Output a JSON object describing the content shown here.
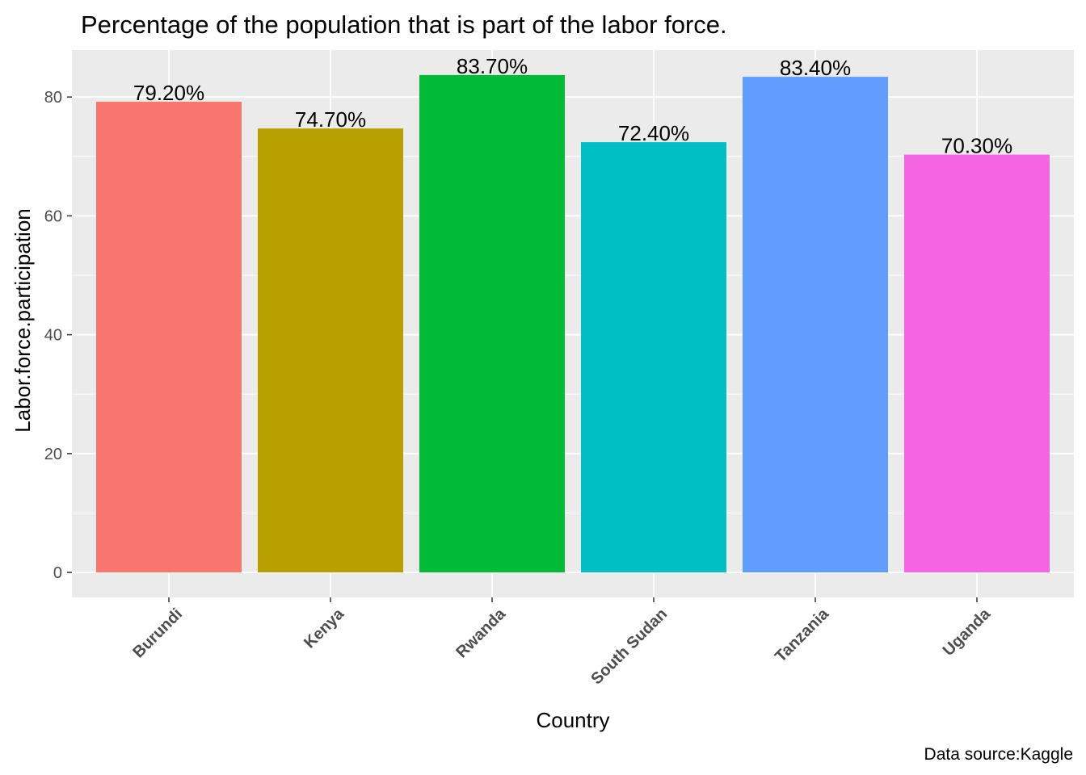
{
  "chart_data": {
    "type": "bar",
    "title": "Percentage of the population that is part of the labor force.",
    "xlabel": "Country",
    "ylabel": "Labor.force.participation",
    "caption": "Data source:Kaggle",
    "categories": [
      "Burundi",
      "Kenya",
      "Rwanda",
      "South Sudan",
      "Tanzania",
      "Uganda"
    ],
    "values": [
      79.2,
      74.7,
      83.7,
      72.4,
      83.4,
      70.3
    ],
    "data_labels": [
      "79.20%",
      "74.70%",
      "83.70%",
      "72.40%",
      "83.40%",
      "70.30%"
    ],
    "colors": [
      "#F8766D",
      "#B79F00",
      "#00BA38",
      "#00BFC4",
      "#619CFF",
      "#F564E3"
    ],
    "yticks": [
      0,
      20,
      40,
      60,
      80
    ],
    "ylim": [
      -4.2,
      87.9
    ],
    "grid": true,
    "panel_background": "#EBEBEB",
    "legend": "none"
  }
}
